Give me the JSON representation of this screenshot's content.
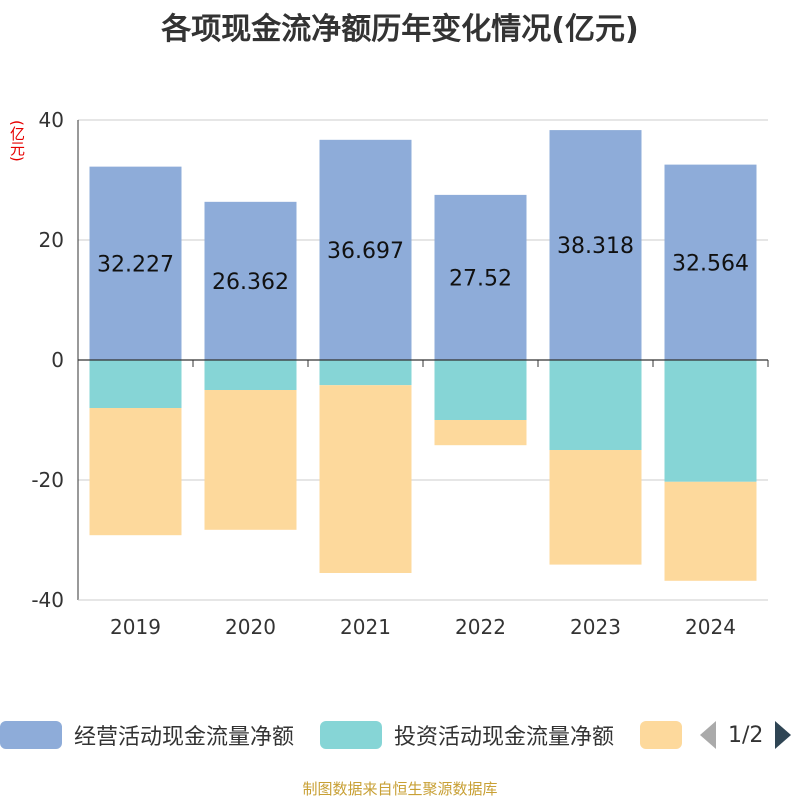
{
  "title": "各项现金流净额历年变化情况(亿元)",
  "unit_label": "(亿元)",
  "source": "制图数据来自恒生聚源数据库",
  "pager": {
    "text": "1/2",
    "prev_icon": "triangle-left-icon",
    "next_icon": "triangle-right-icon"
  },
  "chart_data": {
    "type": "bar",
    "stacked": true,
    "categories": [
      "2019",
      "2020",
      "2021",
      "2022",
      "2023",
      "2024"
    ],
    "series": [
      {
        "name": "经营活动现金流量净额",
        "color": "#8eacd9",
        "values": [
          32.227,
          26.362,
          36.697,
          27.52,
          38.318,
          32.564
        ],
        "show_labels": true
      },
      {
        "name": "投资活动现金流量净额",
        "color": "#86d5d6",
        "values": [
          -8,
          -5,
          -4.2,
          -10,
          -15,
          -20.3
        ],
        "show_labels": false
      },
      {
        "name": "",
        "color": "#fdd99c",
        "values": [
          -21.2,
          -23.3,
          -31.3,
          -4.2,
          -19.1,
          -16.5
        ],
        "show_labels": false
      }
    ],
    "data_labels": [
      "32.227",
      "26.362",
      "36.697",
      "27.52",
      "38.318",
      "32.564"
    ],
    "ylim": [
      -40,
      40
    ],
    "yticks": [
      40,
      20,
      0,
      -20,
      -40
    ],
    "ytick_labels": [
      "40",
      "20",
      "0",
      "-20",
      "-40"
    ],
    "grid": true,
    "legend_position": "bottom"
  }
}
